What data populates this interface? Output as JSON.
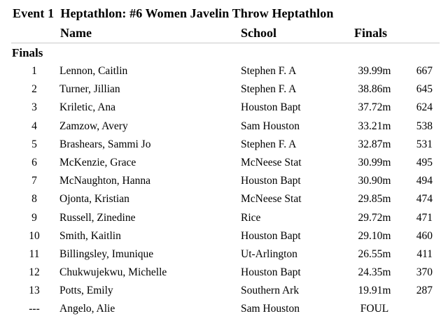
{
  "event_title": "Event 1  Heptathlon: #6 Women Javelin Throw Heptathlon",
  "headers": {
    "name": "Name",
    "school": "School",
    "finals": "Finals"
  },
  "section_label": "Finals",
  "results": [
    {
      "place": "1",
      "name": "Lennon, Caitlin",
      "school": "Stephen F. A",
      "mark": "39.99m",
      "points": "667"
    },
    {
      "place": "2",
      "name": "Turner, Jillian",
      "school": "Stephen F. A",
      "mark": "38.86m",
      "points": "645"
    },
    {
      "place": "3",
      "name": "Kriletic, Ana",
      "school": "Houston Bapt",
      "mark": "37.72m",
      "points": "624"
    },
    {
      "place": "4",
      "name": "Zamzow, Avery",
      "school": "Sam Houston",
      "mark": "33.21m",
      "points": "538"
    },
    {
      "place": "5",
      "name": "Brashears, Sammi Jo",
      "school": "Stephen F. A",
      "mark": "32.87m",
      "points": "531"
    },
    {
      "place": "6",
      "name": "McKenzie, Grace",
      "school": "McNeese Stat",
      "mark": "30.99m",
      "points": "495"
    },
    {
      "place": "7",
      "name": "McNaughton, Hanna",
      "school": "Houston Bapt",
      "mark": "30.90m",
      "points": "494"
    },
    {
      "place": "8",
      "name": "Ojonta, Kristian",
      "school": "McNeese Stat",
      "mark": "29.85m",
      "points": "474"
    },
    {
      "place": "9",
      "name": "Russell, Zinedine",
      "school": "Rice",
      "mark": "29.72m",
      "points": "471"
    },
    {
      "place": "10",
      "name": "Smith, Kaitlin",
      "school": "Houston Bapt",
      "mark": "29.10m",
      "points": "460"
    },
    {
      "place": "11",
      "name": "Billingsley, Imunique",
      "school": "Ut-Arlington",
      "mark": "26.55m",
      "points": "411"
    },
    {
      "place": "12",
      "name": "Chukwujekwu, Michelle",
      "school": "Houston Bapt",
      "mark": "24.35m",
      "points": "370"
    },
    {
      "place": "13",
      "name": "Potts, Emily",
      "school": "Southern Ark",
      "mark": "19.91m",
      "points": "287"
    },
    {
      "place": "---",
      "name": "Angelo, Alie",
      "school": "Sam Houston",
      "mark": "FOUL",
      "points": ""
    }
  ]
}
